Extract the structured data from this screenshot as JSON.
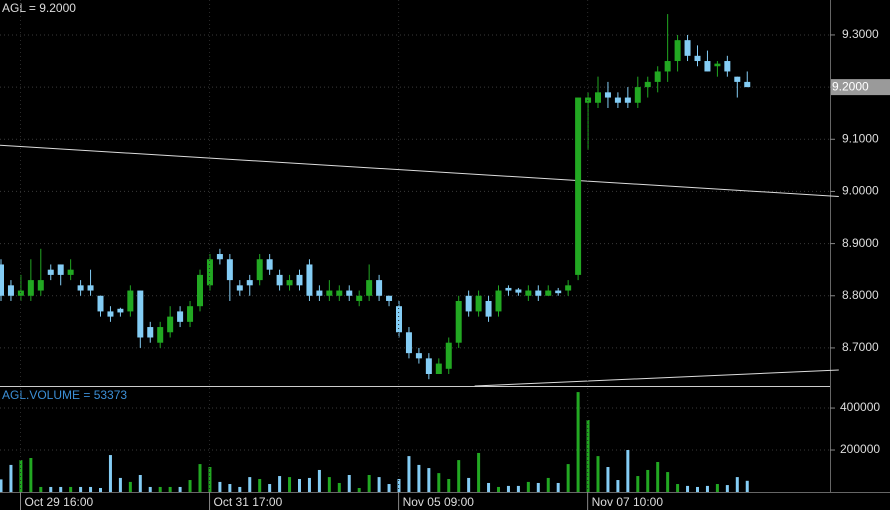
{
  "chart_data": [
    {
      "type": "candlestick",
      "label": "AGL = 9.2000",
      "up_color": "#22a822",
      "down_color": "#84cdf5",
      "open": [
        8.86,
        8.82,
        8.8,
        8.8,
        8.81,
        8.85,
        8.86,
        8.84,
        8.82,
        8.82,
        8.8,
        8.77,
        8.775,
        8.77,
        8.81,
        8.74,
        8.71,
        8.73,
        8.77,
        8.75,
        8.78,
        8.82,
        8.88,
        8.87,
        8.82,
        8.83,
        8.83,
        8.87,
        8.84,
        8.82,
        8.84,
        8.86,
        8.81,
        8.8,
        8.8,
        8.81,
        8.79,
        8.8,
        8.83,
        8.8,
        8.78,
        8.73,
        8.69,
        8.68,
        8.65,
        8.66,
        8.71,
        8.8,
        8.77,
        8.79,
        8.77,
        8.815,
        8.812,
        8.8,
        8.81,
        8.8,
        8.81,
        8.81,
        8.84,
        9.17,
        9.17,
        9.19,
        9.18,
        9.18,
        9.17,
        9.2,
        9.21,
        9.23,
        9.25,
        9.29,
        9.26,
        9.25,
        9.24,
        9.25,
        9.22,
        9.21
      ],
      "high": [
        8.87,
        8.83,
        8.84,
        8.87,
        8.89,
        8.86,
        8.86,
        8.87,
        8.83,
        8.85,
        8.8,
        8.78,
        8.777,
        8.82,
        8.81,
        8.75,
        8.75,
        8.78,
        8.78,
        8.79,
        8.85,
        8.88,
        8.89,
        8.88,
        8.83,
        8.84,
        8.88,
        8.88,
        8.85,
        8.84,
        8.85,
        8.87,
        8.82,
        8.83,
        8.82,
        8.82,
        8.81,
        8.86,
        8.84,
        8.8,
        8.79,
        8.74,
        8.7,
        8.69,
        8.68,
        8.72,
        8.8,
        8.81,
        8.81,
        8.8,
        8.82,
        8.82,
        8.815,
        8.82,
        8.82,
        8.82,
        8.815,
        8.83,
        9.18,
        9.19,
        9.22,
        9.21,
        9.19,
        9.2,
        9.22,
        9.22,
        9.24,
        9.34,
        9.3,
        9.3,
        9.28,
        9.27,
        9.25,
        9.26,
        9.22,
        9.23
      ],
      "low": [
        8.79,
        8.79,
        8.79,
        8.79,
        8.8,
        8.83,
        8.82,
        8.83,
        8.8,
        8.8,
        8.76,
        8.75,
        8.76,
        8.76,
        8.7,
        8.71,
        8.7,
        8.72,
        8.74,
        8.74,
        8.77,
        8.81,
        8.86,
        8.79,
        8.8,
        8.8,
        8.82,
        8.84,
        8.81,
        8.81,
        8.81,
        8.79,
        8.79,
        8.79,
        8.79,
        8.79,
        8.78,
        8.79,
        8.79,
        8.78,
        8.72,
        8.68,
        8.67,
        8.64,
        8.65,
        8.65,
        8.7,
        8.76,
        8.76,
        8.75,
        8.76,
        8.8,
        8.8,
        8.79,
        8.79,
        8.8,
        8.8,
        8.8,
        8.83,
        9.08,
        9.16,
        9.16,
        9.16,
        9.16,
        9.16,
        9.18,
        9.19,
        9.21,
        9.23,
        9.25,
        9.24,
        9.23,
        9.22,
        9.22,
        9.18,
        9.2
      ],
      "close": [
        8.8,
        8.8,
        8.81,
        8.83,
        8.83,
        8.84,
        8.84,
        8.85,
        8.81,
        8.81,
        8.77,
        8.76,
        8.768,
        8.81,
        8.72,
        8.72,
        8.74,
        8.76,
        8.75,
        8.78,
        8.84,
        8.87,
        8.87,
        8.83,
        8.81,
        8.82,
        8.87,
        8.85,
        8.82,
        8.83,
        8.82,
        8.8,
        8.8,
        8.81,
        8.81,
        8.8,
        8.8,
        8.83,
        8.8,
        8.79,
        8.73,
        8.69,
        8.68,
        8.65,
        8.67,
        8.71,
        8.79,
        8.77,
        8.8,
        8.76,
        8.81,
        8.81,
        8.806,
        8.81,
        8.8,
        8.81,
        8.805,
        8.82,
        9.18,
        9.18,
        9.19,
        9.18,
        9.17,
        9.17,
        9.2,
        9.21,
        9.23,
        9.25,
        9.29,
        9.26,
        9.25,
        9.23,
        9.245,
        9.23,
        9.21,
        9.2
      ],
      "ylim": [
        8.627,
        9.367
      ],
      "yticks": [
        {
          "value": 8.7,
          "label": "8.7000"
        },
        {
          "value": 8.8,
          "label": "8.8000"
        },
        {
          "value": 8.9,
          "label": "8.9000"
        },
        {
          "value": 9.0,
          "label": "9.0000"
        },
        {
          "value": 9.1,
          "label": "9.1000"
        },
        {
          "value": 9.2,
          "label": "9.2000"
        },
        {
          "value": 9.3,
          "label": "9.3000"
        }
      ],
      "last": {
        "value": 9.2,
        "label": "9.2000"
      },
      "trendlines": [
        {
          "x": [
            -0.1,
            84.2
          ],
          "y": [
            9.0885,
            8.9904
          ]
        },
        {
          "x": [
            47.6,
            84.2
          ],
          "y": [
            8.627,
            8.6577
          ]
        }
      ],
      "grid": true
    },
    {
      "type": "bar",
      "label": "AGL.VOLUME = 53373",
      "categories": [
        null,
        null,
        "Oct 29 16:00",
        null,
        null,
        null,
        null,
        null,
        null,
        null,
        null,
        null,
        null,
        null,
        null,
        null,
        null,
        null,
        null,
        null,
        null,
        "Oct 31 17:00",
        null,
        null,
        null,
        null,
        null,
        null,
        null,
        null,
        null,
        null,
        null,
        null,
        null,
        null,
        null,
        null,
        null,
        null,
        "Nov 05 09:00",
        null,
        null,
        null,
        null,
        null,
        null,
        null,
        null,
        null,
        null,
        null,
        null,
        null,
        null,
        null,
        null,
        null,
        null,
        "Nov 07 10:00",
        null,
        null,
        null,
        null,
        null,
        null,
        null,
        null,
        null,
        null,
        null,
        null,
        null,
        null,
        null,
        null
      ],
      "values": [
        60000,
        129000,
        152000,
        162000,
        24000,
        24000,
        24000,
        24000,
        24000,
        24000,
        19000,
        176000,
        67000,
        48000,
        81000,
        24000,
        24000,
        24000,
        24000,
        57000,
        133000,
        119000,
        48000,
        38000,
        24000,
        71000,
        62000,
        38000,
        76000,
        71000,
        62000,
        67000,
        105000,
        71000,
        43000,
        81000,
        19000,
        81000,
        71000,
        38000,
        62000,
        171000,
        129000,
        114000,
        90000,
        62000,
        152000,
        67000,
        186000,
        43000,
        24000,
        29000,
        29000,
        48000,
        43000,
        67000,
        43000,
        133000,
        476000,
        343000,
        171000,
        119000,
        57000,
        200000,
        76000,
        105000,
        143000,
        95000,
        38000,
        29000,
        24000,
        29000,
        38000,
        33000,
        71000,
        53373
      ],
      "ylim": [
        0,
        505000
      ],
      "yticks": [
        200000,
        400000
      ],
      "grid": true
    }
  ]
}
